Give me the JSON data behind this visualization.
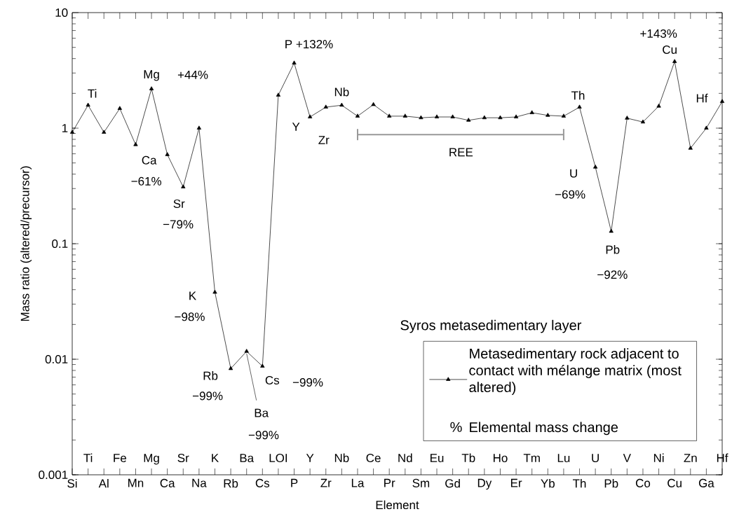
{
  "chart_data": {
    "type": "line",
    "xlabel": "Element",
    "ylabel": "Mass ratio (altered/precursor)",
    "legend_title": "Syros metasedimentary layer",
    "categories": [
      "Si",
      "Ti",
      "Al",
      "Fe",
      "Mn",
      "Mg",
      "Ca",
      "Sr",
      "Na",
      "K",
      "Rb",
      "Ba",
      "Cs",
      "LOI",
      "P",
      "Y",
      "Zr",
      "Nb",
      "La",
      "Ce",
      "Pr",
      "Nd",
      "Sm",
      "Eu",
      "Gd",
      "Tb",
      "Dy",
      "Ho",
      "Er",
      "Tm",
      "Yb",
      "Lu",
      "Th",
      "U",
      "Pb",
      "V",
      "Co",
      "Ni",
      "Cu",
      "Zn",
      "Ga",
      "Hf"
    ],
    "series": [
      {
        "name": "Metasedimentary rock adjacent to contact with mélange matrix (most altered)",
        "color": "#000000",
        "values": [
          0.92,
          1.58,
          0.92,
          1.48,
          0.72,
          2.19,
          0.59,
          0.31,
          1.0,
          0.038,
          0.0083,
          0.0117,
          0.0087,
          1.93,
          3.66,
          1.25,
          1.52,
          1.58,
          1.27,
          1.6,
          1.27,
          1.27,
          1.23,
          1.25,
          1.25,
          1.17,
          1.23,
          1.23,
          1.25,
          1.36,
          1.29,
          1.27,
          1.52,
          0.46,
          0.128,
          1.22,
          1.13,
          1.55,
          3.77,
          0.67,
          1.0,
          1.7
        ]
      }
    ],
    "log": "y",
    "ylim": [
      0.001,
      10
    ],
    "yticks": [
      0.001,
      0.01,
      0.1,
      1,
      10
    ],
    "marker": "triangle",
    "line_style": "solid",
    "legend": "bottom right",
    "annotations": [
      {
        "text": "Ti",
        "x": "Ti",
        "y": 1.58
      },
      {
        "text": "Mg",
        "x": "Mg",
        "y": 2.19
      },
      {
        "text": "+44%",
        "x": "Mg",
        "y": 2.19
      },
      {
        "text": "Ca",
        "x": "Ca",
        "y": 0.59
      },
      {
        "text": "−61%",
        "x": "Ca",
        "y": 0.59
      },
      {
        "text": "Sr",
        "x": "Sr",
        "y": 0.31
      },
      {
        "text": "K",
        "x": "K",
        "y": 0.038
      },
      {
        "text": "−98%",
        "x": "K",
        "y": 0.038
      },
      {
        "text": "Rb",
        "x": "Rb",
        "y": 0.0083
      },
      {
        "text": "−99%",
        "x": "Rb",
        "y": 0.0083
      },
      {
        "text": "Ba",
        "x": "Ba",
        "y": 0.0117
      },
      {
        "text": "Cs",
        "x": "Cs",
        "y": 0.0087
      },
      {
        "text": "P +132%",
        "x": "P",
        "y": 3.66
      },
      {
        "text": "Y",
        "x": "Y",
        "y": 1.25
      },
      {
        "text": "Zr",
        "x": "Zr",
        "y": 1.52
      },
      {
        "text": "Nb",
        "x": "Nb",
        "y": 1.58
      },
      {
        "text": "Th",
        "x": "Th",
        "y": 1.52
      },
      {
        "text": "U",
        "x": "U",
        "y": 0.46
      },
      {
        "text": "−69%",
        "x": "U",
        "y": 0.46
      },
      {
        "text": "Pb",
        "x": "Pb",
        "y": 0.128
      },
      {
        "text": "+143%",
        "x": "Cu",
        "y": 3.77
      },
      {
        "text": "Cu",
        "x": "Cu",
        "y": 3.77
      },
      {
        "text": "Hf",
        "x": "Hf",
        "y": 1.7
      },
      "−79%",
      "−99%",
      "−99%",
      "−92%",
      "REE",
      "%",
      "Elemental mass change"
    ]
  }
}
